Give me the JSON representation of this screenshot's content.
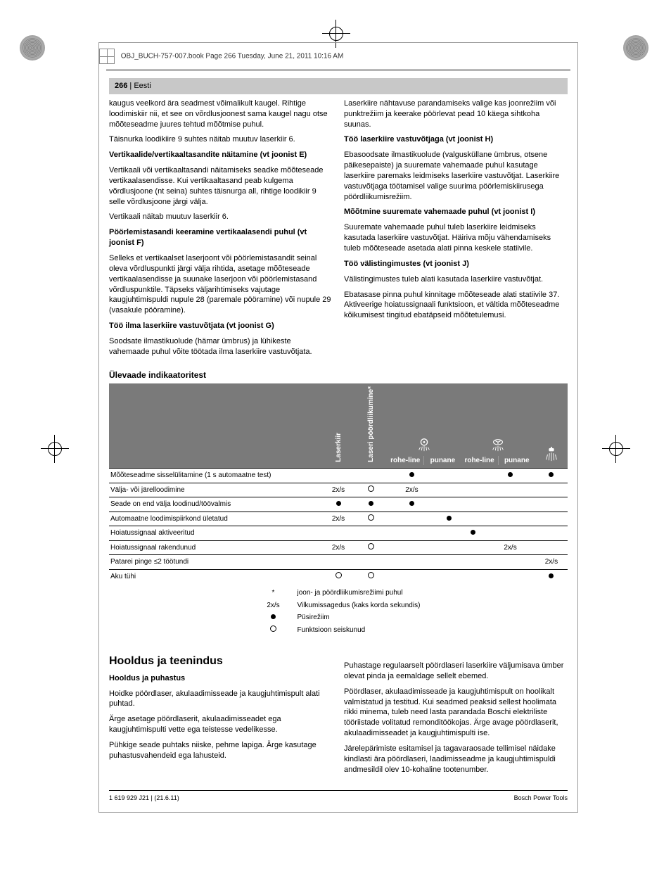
{
  "meta": {
    "line": "OBJ_BUCH-757-007.book  Page 266  Tuesday, June 21, 2011  10:16 AM"
  },
  "header": {
    "page_no": "266",
    "lang": "Eesti"
  },
  "left": {
    "p1": "kaugus veelkord ära seadmest võimalikult kaugel. Rihtige loodimiskiir nii, et see on võrdlusjoonest sama kaugel nagu otse mõõteseadme juures tehtud mõõtmise puhul.",
    "p2": "Täisnurka loodikiire 9 suhtes näitab muutuv laserkiir 6.",
    "h1": "Vertikaalide/vertikaaltasandite näitamine (vt joonist E)",
    "p3": "Vertikaali või vertikaaltasandi näitamiseks seadke mõõteseade vertikaalasendisse. Kui vertikaaltasand peab kulgema võrdlusjoone (nt seina) suhtes täisnurga all, rihtige loodikiir 9 selle võrdlusjoone järgi välja.",
    "p4": "Vertikaali näitab muutuv laserkiir 6.",
    "h2": "Pöörlemistasandi keeramine vertikaalasendi puhul (vt joonist F)",
    "p5": "Selleks et vertikaalset laserjoont või pöörlemistasandit seinal oleva võrdluspunkti järgi välja rihtida, asetage mõõteseade vertikaalasendisse ja suunake laserjoon või pöörlemistasand võrdluspunktile. Täpseks väljarihtimiseks vajutage kaugjuhtimispuldi nupule 28 (paremale pööramine) või nupule 29 (vasakule pööramine).",
    "h3": "Töö ilma laserkiire vastuvõtjata (vt joonist G)",
    "p6": "Soodsate ilmastikuolude (hämar ümbrus) ja lühikeste vahemaade puhul võite töötada ilma laserkiire vastuvõtjata."
  },
  "right": {
    "p1": "Laserkiire nähtavuse parandamiseks valige kas joonrežiim või punktrežiim ja keerake pöörlevat pead 10 käega sihtkoha suunas.",
    "h1": "Töö laserkiire vastuvõtjaga (vt joonist H)",
    "p2": "Ebasoodsate ilmastikuolude (valgusküllane ümbrus, otsene päikesepaiste) ja suuremate vahemaade puhul kasutage laserkiire paremaks leidmiseks laserkiire vastuvõtjat. Laserkiire vastuvõtjaga töötamisel valige suurima pöörlemiskiirusega pöördliikumisrežiim.",
    "h2": "Mõõtmine suuremate vahemaade puhul (vt joonist I)",
    "p3": "Suuremate vahemaade puhul tuleb laserkiire leidmiseks kasutada laserkiire vastuvõtjat. Häiriva mõju vähendamiseks tuleb mõõteseade asetada alati pinna keskele statiivile.",
    "h3": "Töö välistingimustes (vt joonist J)",
    "p4": "Välistingimustes tuleb alati kasutada laserkiire vastuvõtjat.",
    "p5": "Ebatasase pinna puhul kinnitage mõõteseade alati statiivile 37. Aktiveerige hoiatussignaali funktsioon, et vältida mõõteseadme kõikumisest tingitud ebatäpseid mõõtetulemusi."
  },
  "overview_title": "Ülevaade indikaatoritest",
  "table": {
    "headers": {
      "h1": "Laserkiir",
      "h2": "Laseri pöördliikumine*",
      "h3_g": "rohe-line",
      "h3_r": "punane",
      "h4_g": "rohe-line",
      "h4_r": "punane"
    },
    "rows": [
      {
        "label": "Mõõteseadme sisselülitamine (1 s automaatne test)",
        "c": [
          "",
          "",
          "dot",
          "",
          "",
          "dot",
          "dot"
        ]
      },
      {
        "label": "Välja- või järelloodimine",
        "c": [
          "2x/s",
          "ring",
          "2x/s",
          "",
          "",
          "",
          ""
        ]
      },
      {
        "label": "Seade on end välja loodinud/töövalmis",
        "c": [
          "dot",
          "dot",
          "dot",
          "",
          "",
          "",
          ""
        ]
      },
      {
        "label": "Automaatne loodimispiirkond ületatud",
        "c": [
          "2x/s",
          "ring",
          "",
          "dot",
          "",
          "",
          ""
        ]
      },
      {
        "label": "Hoiatussignaal aktiveeritud",
        "c": [
          "",
          "",
          "",
          "",
          "dot",
          "",
          ""
        ]
      },
      {
        "label": "Hoiatussignaal rakendunud",
        "c": [
          "2x/s",
          "ring",
          "",
          "",
          "",
          "2x/s",
          ""
        ]
      },
      {
        "label": "Patarei pinge ≤2 töötundi",
        "c": [
          "",
          "",
          "",
          "",
          "",
          "",
          "2x/s"
        ]
      },
      {
        "label": "Aku tühi",
        "c": [
          "ring",
          "ring",
          "",
          "",
          "",
          "",
          "dot"
        ]
      }
    ],
    "legend": [
      {
        "sym": "*",
        "txt": "joon- ja pöördliikumisrežiimi puhul"
      },
      {
        "sym": "2x/s",
        "txt": "Vilkumissagedus (kaks korda sekundis)"
      },
      {
        "sym": "dot",
        "txt": "Püsirežiim"
      },
      {
        "sym": "ring",
        "txt": "Funktsioon seiskunud"
      }
    ]
  },
  "maint_title": "Hooldus ja teenindus",
  "maint_sub": "Hooldus ja puhastus",
  "maint_left": {
    "p1": "Hoidke pöördlaser, akulaadimisseade ja kaugjuhtimispult alati puhtad.",
    "p2": "Ärge asetage pöördlaserit, akulaadimisseadet ega kaugjuhtimispulti vette ega teistesse vedelikesse.",
    "p3": "Pühkige seade puhtaks niiske, pehme lapiga. Ärge kasutage puhastusvahendeid ega lahusteid."
  },
  "maint_right": {
    "p1": "Puhastage regulaarselt pöördlaseri laserkiire väljumisava ümber olevat pinda ja eemaldage sellelt ebemed.",
    "p2": "Pöördlaser, akulaadimisseade ja kaugjuhtimispult on hoolikalt valmistatud ja testitud. Kui seadmed peaksid sellest hoolimata rikki minema, tuleb need lasta parandada Boschi elektriliste tööriistade volitatud remonditöökojas. Ärge avage pöördlaserit, akulaadimisseadet ja kaugjuhtimispulti ise.",
    "p3": "Järelepärimiste esitamisel ja tagavaraosade tellimisel näidake kindlasti ära pöördlaseri, laadimisseadme ja kaugjuhtimispuldi andmesildil olev 10-kohaline tootenumber."
  },
  "footer": {
    "left": "1 619 929 J21 | (21.6.11)",
    "right": "Bosch Power Tools"
  },
  "icons": {
    "laser_indicator": "laser-indicator",
    "warning": "warning-indicator",
    "battery": "battery-indicator"
  }
}
